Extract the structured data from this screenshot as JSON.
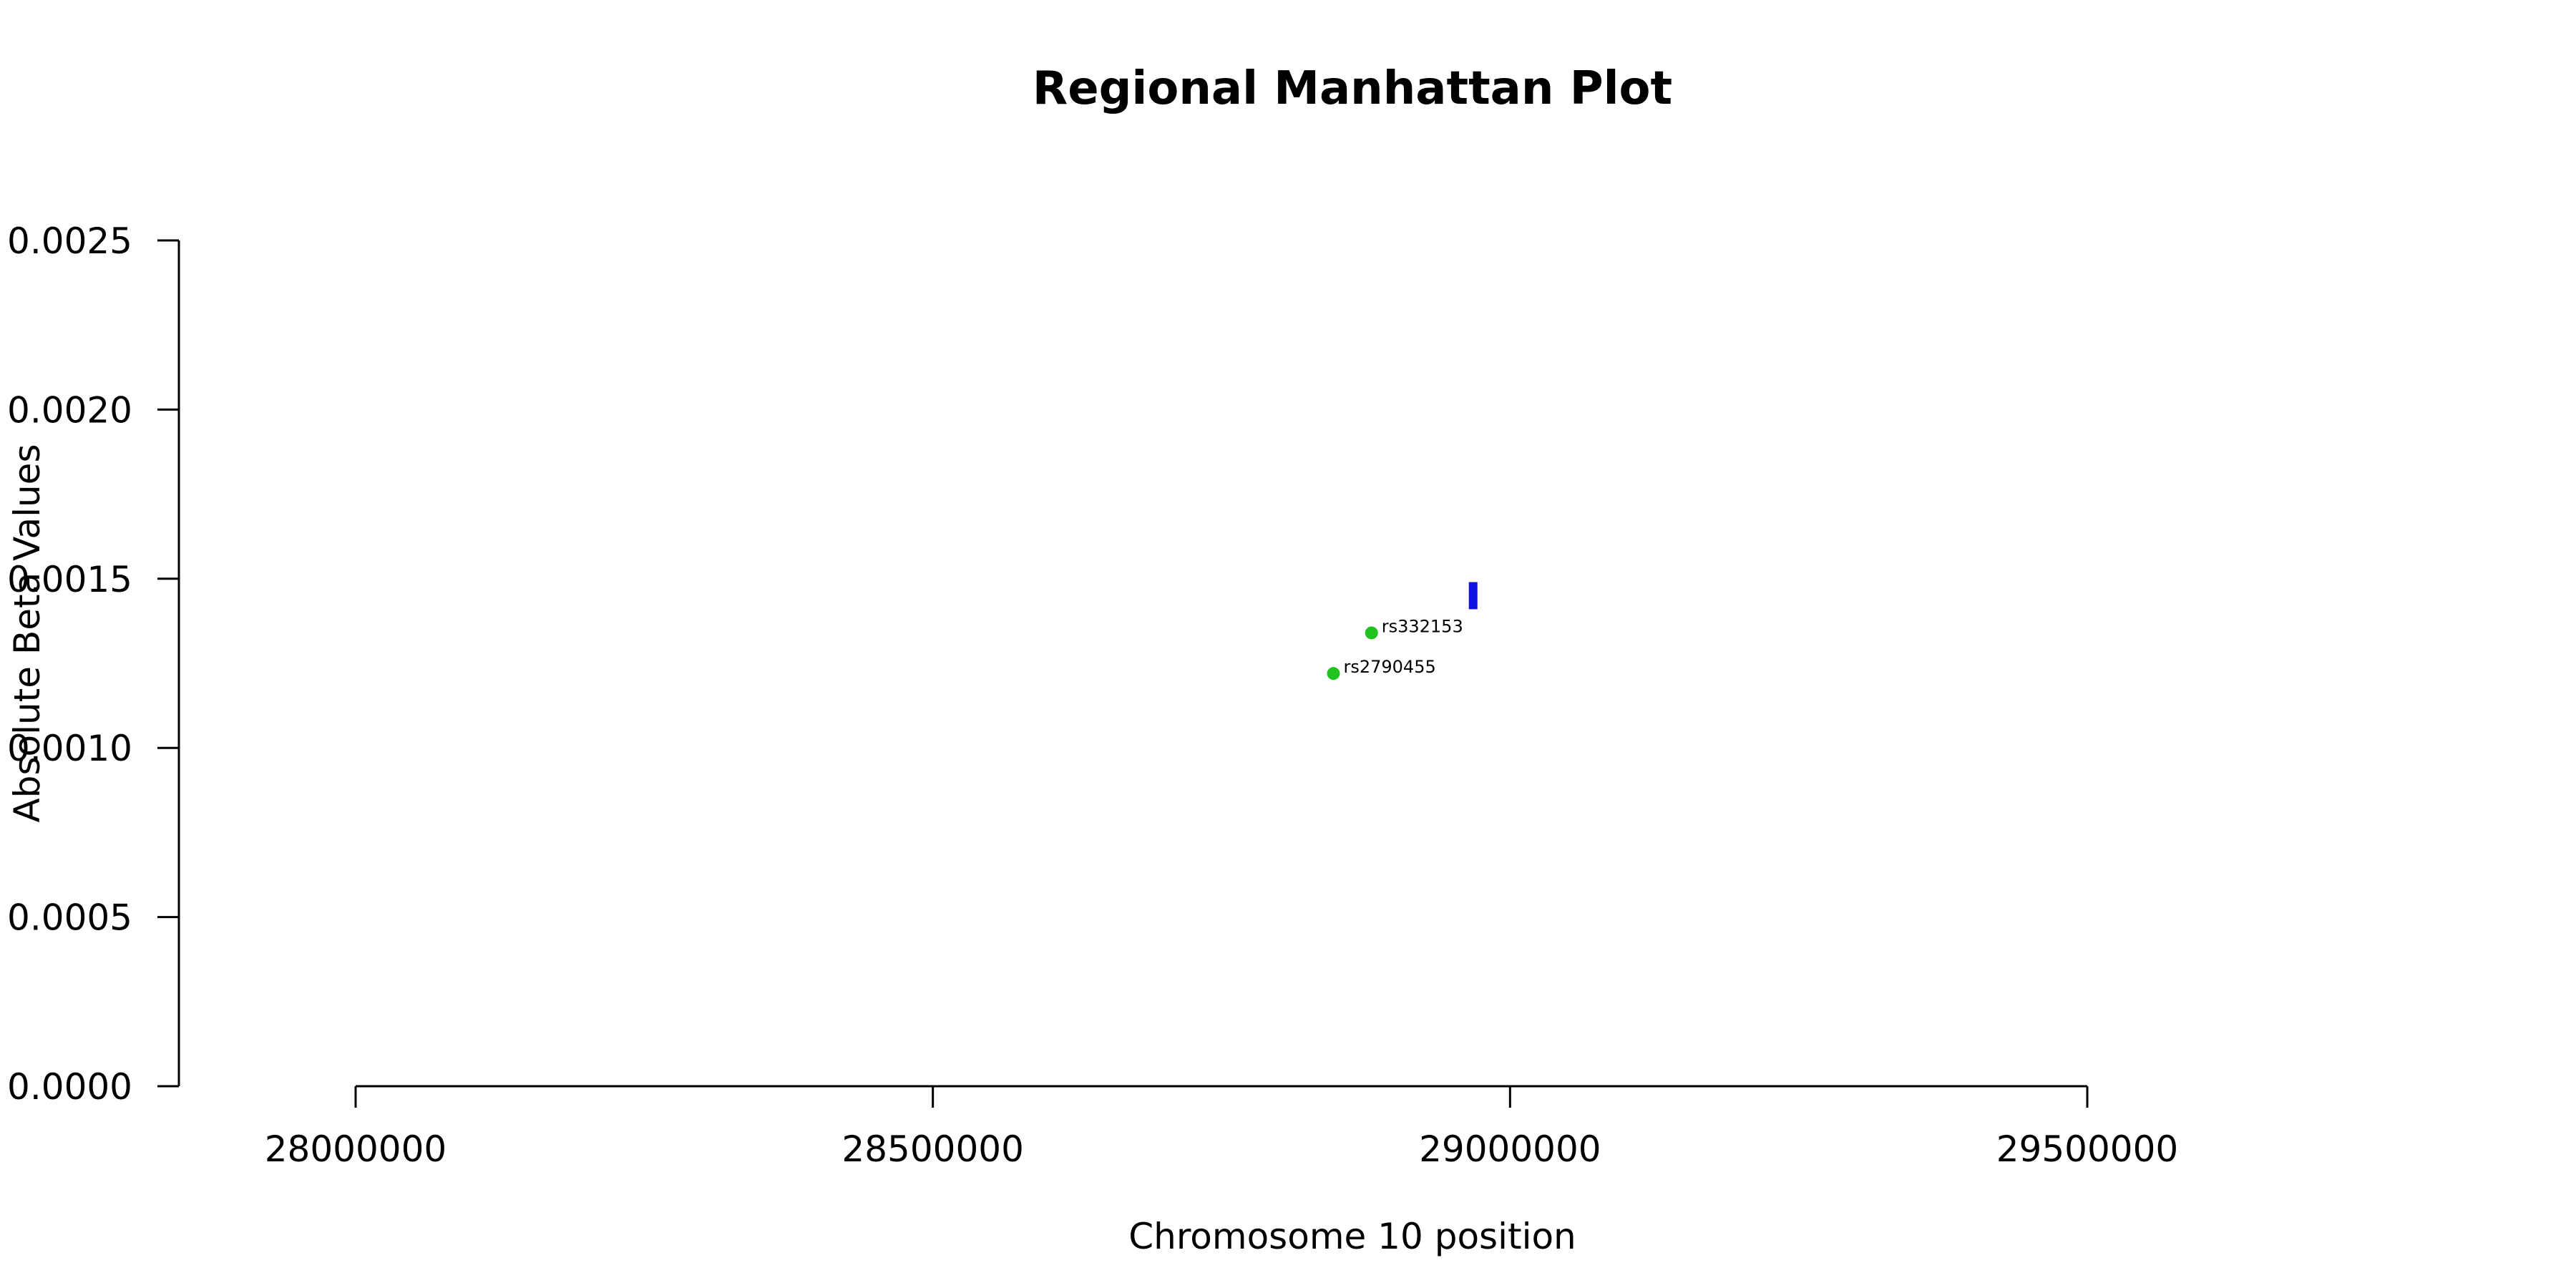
{
  "chart_data": {
    "type": "scatter",
    "title": "Regional Manhattan Plot",
    "xlabel": "Chromosome 10 position",
    "ylabel": "Absolute Beta Values",
    "xlim": [
      28000000,
      29500000
    ],
    "ylim": [
      0,
      0.0025
    ],
    "x_ticks": [
      28000000,
      28500000,
      29000000,
      29500000
    ],
    "x_tick_labels": [
      "28000000",
      "28500000",
      "29000000",
      "29500000"
    ],
    "y_ticks": [
      0,
      0.0005,
      0.001,
      0.0015,
      0.002,
      0.0025
    ],
    "y_tick_labels": [
      "0.0000",
      "0.0005",
      "0.0010",
      "0.0015",
      "0.0020",
      "0.0025"
    ],
    "grid": false,
    "points": [
      {
        "label": "rs332153",
        "x": 28880000,
        "y": 0.00134,
        "color": "#1fc21f"
      },
      {
        "label": "rs2790455",
        "x": 28847000,
        "y": 0.00122,
        "color": "#1fc21f"
      }
    ],
    "segments": [
      {
        "x": 28968000,
        "y0": 0.00141,
        "y1": 0.00149,
        "color": "#1010e0"
      }
    ]
  }
}
